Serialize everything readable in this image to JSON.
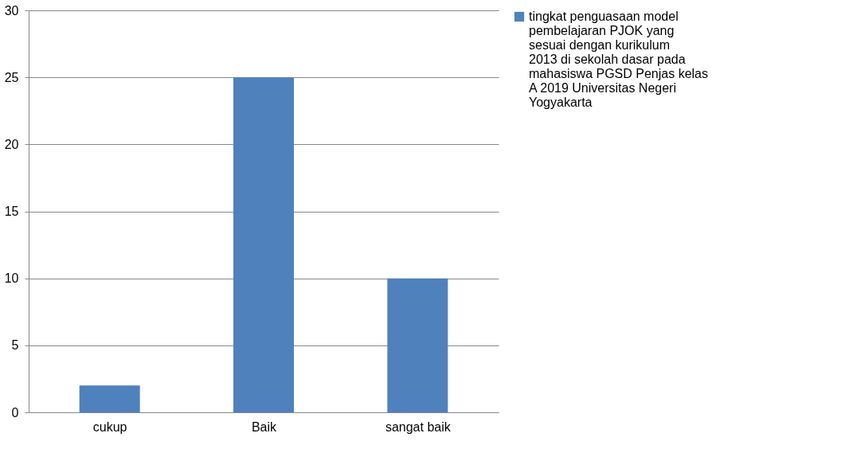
{
  "chart_data": {
    "type": "bar",
    "categories": [
      "cukup",
      "Baik",
      "sangat baik"
    ],
    "series": [
      {
        "name": "tingkat penguasaan model pembelajaran PJOK yang sesuai dengan kurikulum 2013 di sekolah dasar pada mahasiswa PGSD Penjas kelas A 2019 Universitas Negeri Yogyakarta",
        "color": "#4f81bd",
        "values": [
          2,
          25,
          10
        ]
      }
    ],
    "ylim": [
      0,
      30
    ],
    "yticks": [
      0,
      5,
      10,
      15,
      20,
      25,
      30
    ],
    "grid": "y",
    "legend": "right"
  }
}
